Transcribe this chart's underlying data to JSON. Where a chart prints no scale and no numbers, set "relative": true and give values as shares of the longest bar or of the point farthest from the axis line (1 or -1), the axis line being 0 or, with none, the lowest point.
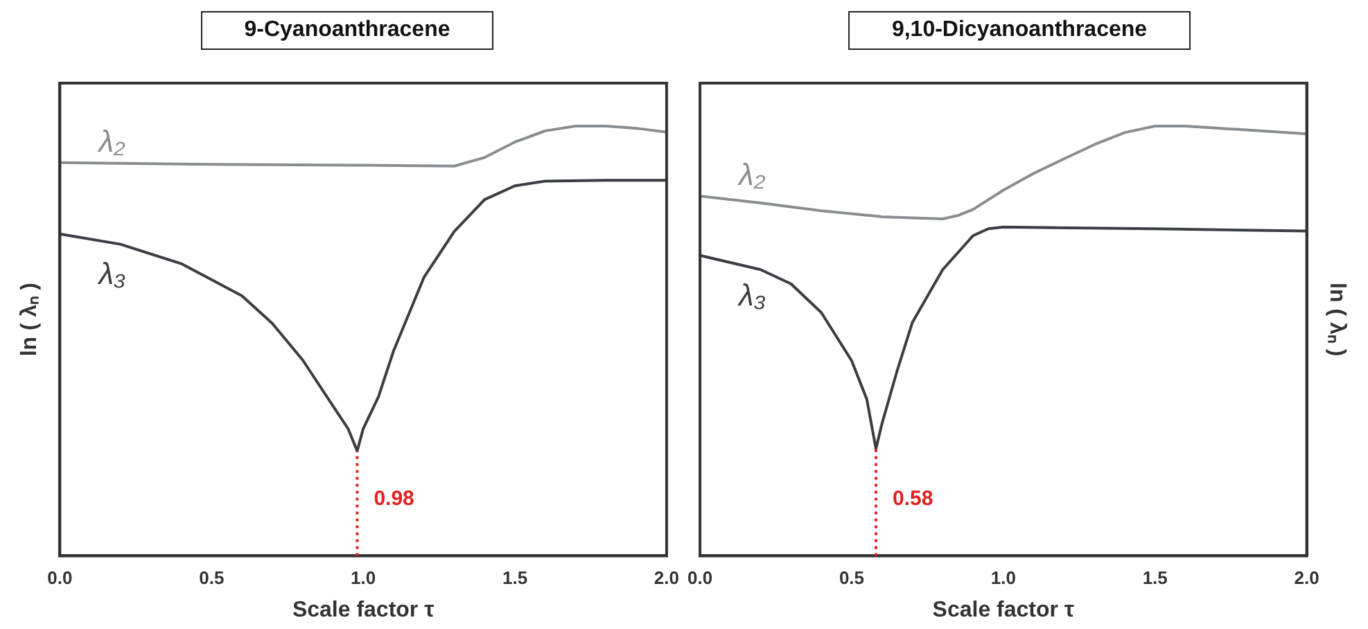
{
  "chart_data": [
    {
      "type": "line",
      "title": "9-Cyanoanthracene",
      "xlabel": "Scale factor τ",
      "ylabel": "ln ( λₙ )",
      "relative": true,
      "xlim": [
        0,
        2
      ],
      "xticks": [
        {
          "value": 0,
          "label": "0.0"
        },
        {
          "value": 0.5,
          "label": "0.5"
        },
        {
          "value": 1,
          "label": "1.0"
        },
        {
          "value": 1.5,
          "label": "1.5"
        },
        {
          "value": 2,
          "label": "2.0"
        }
      ],
      "grid": false,
      "legend": false,
      "marker": "none",
      "line_style": "solid",
      "series": [
        {
          "name": "λ₂",
          "color": "#8a8d90",
          "x": [
            0,
            0.5,
            1.0,
            1.3,
            1.4,
            1.5,
            1.6,
            1.7,
            1.8,
            1.9,
            2.0
          ],
          "values": [
            0.915,
            0.911,
            0.909,
            0.907,
            0.927,
            0.963,
            0.989,
            1,
            1,
            0.995,
            0.986
          ]
        },
        {
          "name": "λ₃",
          "color": "#3a3d42",
          "x": [
            0,
            0.2,
            0.4,
            0.6,
            0.7,
            0.8,
            0.9,
            0.95,
            0.98,
            1.0,
            1.05,
            1.1,
            1.2,
            1.3,
            1.4,
            1.5,
            1.6,
            1.8,
            2.0
          ],
          "values": [
            0.749,
            0.725,
            0.68,
            0.605,
            0.541,
            0.456,
            0.349,
            0.296,
            0.244,
            0.296,
            0.37,
            0.477,
            0.648,
            0.755,
            0.829,
            0.861,
            0.872,
            0.874,
            0.874
          ]
        }
      ],
      "ref_lines": [
        {
          "axis": "x",
          "value": 0.98,
          "label": "0.98",
          "color": "#e02020",
          "line_style": "dotted"
        }
      ]
    },
    {
      "type": "line",
      "title": "9,10-Dicyanoanthracene",
      "xlabel": "Scale factor τ",
      "ylabel": "ln ( λₙ )",
      "relative": true,
      "xlim": [
        0,
        2
      ],
      "xticks": [
        {
          "value": 0,
          "label": "0.0"
        },
        {
          "value": 0.5,
          "label": "0.5"
        },
        {
          "value": 1,
          "label": "1.0"
        },
        {
          "value": 1.5,
          "label": "1.5"
        },
        {
          "value": 2,
          "label": "2.0"
        }
      ],
      "grid": false,
      "legend": false,
      "marker": "none",
      "line_style": "solid",
      "series": [
        {
          "name": "λ₂",
          "color": "#8a8d90",
          "x": [
            0,
            0.2,
            0.4,
            0.6,
            0.8,
            0.85,
            0.9,
            1.0,
            1.1,
            1.2,
            1.3,
            1.4,
            1.5,
            1.6,
            1.8,
            2.0
          ],
          "values": [
            0.837,
            0.821,
            0.803,
            0.789,
            0.784,
            0.792,
            0.806,
            0.851,
            0.89,
            0.924,
            0.957,
            0.985,
            1,
            1,
            0.991,
            0.982
          ]
        },
        {
          "name": "λ₃",
          "color": "#3a3d42",
          "x": [
            0,
            0.2,
            0.3,
            0.4,
            0.5,
            0.55,
            0.58,
            0.6,
            0.65,
            0.7,
            0.8,
            0.9,
            0.95,
            1.0,
            1.5,
            2.0
          ],
          "values": [
            0.699,
            0.666,
            0.633,
            0.566,
            0.454,
            0.364,
            0.249,
            0.308,
            0.431,
            0.543,
            0.666,
            0.745,
            0.761,
            0.765,
            0.761,
            0.756
          ]
        }
      ],
      "ref_lines": [
        {
          "axis": "x",
          "value": 0.58,
          "label": "0.58",
          "color": "#e02020",
          "line_style": "dotted"
        }
      ]
    }
  ]
}
